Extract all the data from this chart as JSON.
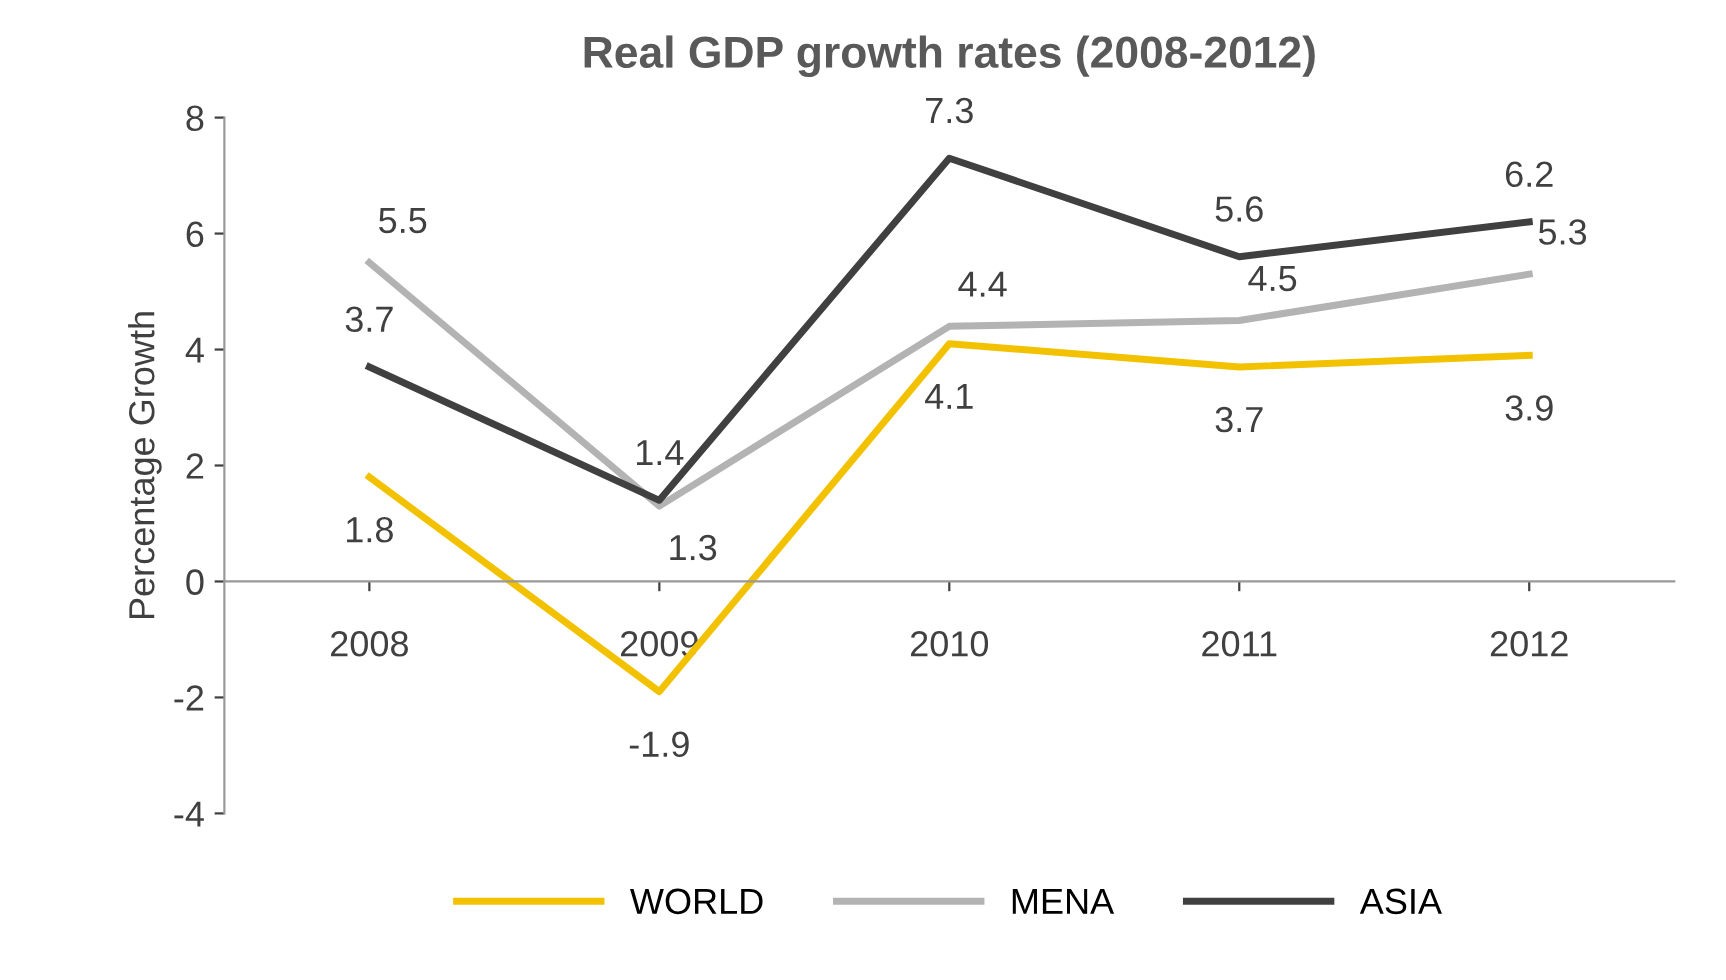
{
  "chart_data": {
    "type": "line",
    "title": "Real GDP growth rates (2008-2012)",
    "ylabel": "Percentage Growth",
    "categories": [
      "2008",
      "2009",
      "2010",
      "2011",
      "2012"
    ],
    "series": [
      {
        "name": "WORLD",
        "color": "#f2c200",
        "values": [
          1.8,
          -1.9,
          4.1,
          3.7,
          3.9
        ]
      },
      {
        "name": "MENA",
        "color": "#b3b3b3",
        "values": [
          5.5,
          1.3,
          4.4,
          4.5,
          5.3
        ]
      },
      {
        "name": "ASIA",
        "color": "#404040",
        "values": [
          3.7,
          1.4,
          7.3,
          5.6,
          6.2
        ]
      }
    ],
    "ylim": [
      -4,
      8
    ],
    "yticks": [
      -4,
      -2,
      0,
      2,
      4,
      6,
      8
    ],
    "data_labels": true,
    "legend": "bottom",
    "grid": false,
    "marker": "none",
    "line_style": "solid"
  }
}
